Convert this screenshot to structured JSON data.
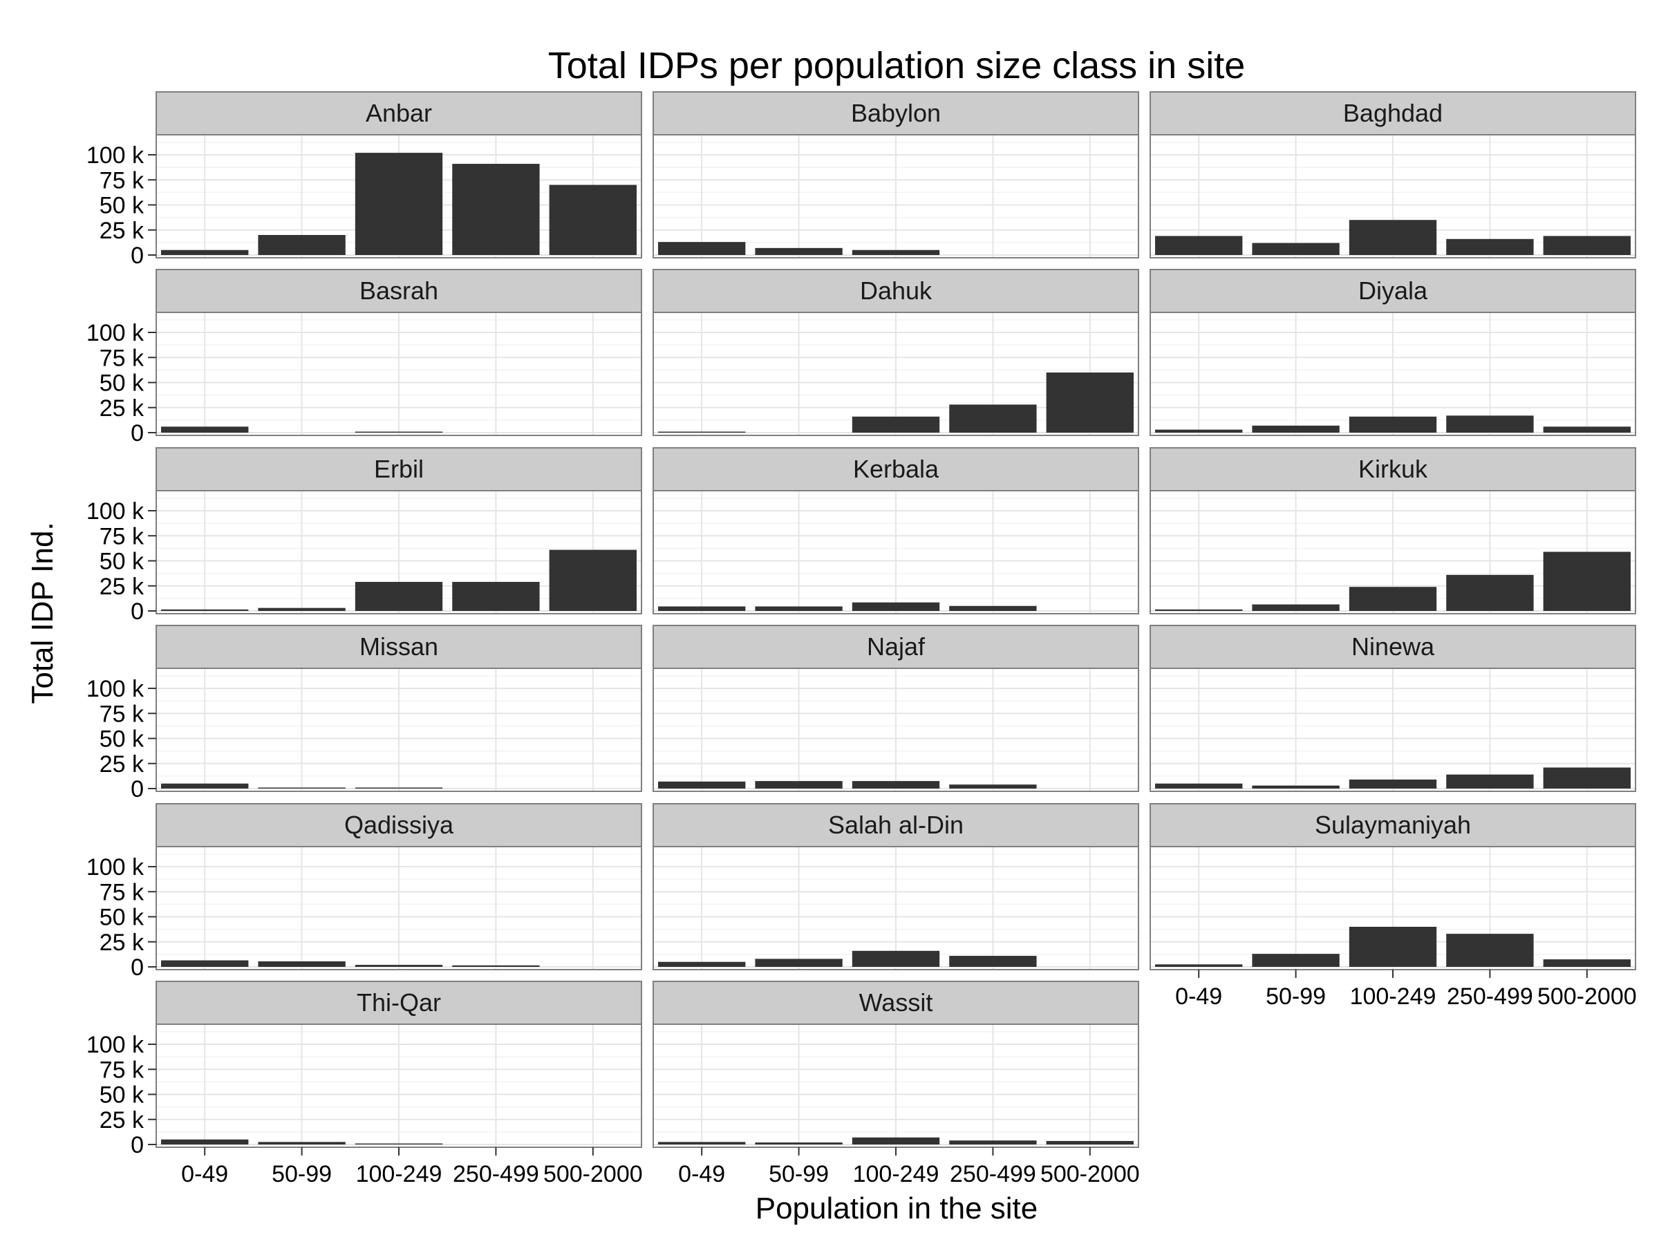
{
  "chart_data": {
    "type": "bar",
    "faceted": true,
    "title": "Total IDPs per population size class in site",
    "xlabel": "Population in the site",
    "ylabel": "Total IDP Ind.",
    "categories": [
      "0-49",
      "50-99",
      "100-249",
      "250-499",
      "500-2000"
    ],
    "ylim": [
      0,
      120000
    ],
    "yticks": [
      0,
      25000,
      50000,
      75000,
      100000
    ],
    "ytick_labels": [
      "0",
      "25 k",
      "50 k",
      "75 k",
      "100 k"
    ],
    "grid": true,
    "bar_color": "#333333",
    "facets": [
      {
        "name": "Anbar",
        "values": [
          5000,
          20000,
          102000,
          91000,
          70000
        ]
      },
      {
        "name": "Babylon",
        "values": [
          13000,
          7000,
          5000,
          0,
          0
        ]
      },
      {
        "name": "Baghdad",
        "values": [
          19000,
          12000,
          35000,
          16000,
          19000
        ]
      },
      {
        "name": "Basrah",
        "values": [
          6000,
          0,
          1000,
          0,
          0
        ]
      },
      {
        "name": "Dahuk",
        "values": [
          1000,
          0,
          16000,
          28000,
          60000
        ]
      },
      {
        "name": "Diyala",
        "values": [
          3000,
          7000,
          16000,
          17000,
          6000
        ]
      },
      {
        "name": "Erbil",
        "values": [
          1500,
          3000,
          29000,
          29000,
          61000
        ]
      },
      {
        "name": "Kerbala",
        "values": [
          4500,
          4500,
          8500,
          5000,
          0
        ]
      },
      {
        "name": "Kirkuk",
        "values": [
          1500,
          6500,
          24000,
          36000,
          59000
        ]
      },
      {
        "name": "Missan",
        "values": [
          5000,
          1000,
          1000,
          0,
          0
        ]
      },
      {
        "name": "Najaf",
        "values": [
          7000,
          7500,
          7500,
          4000,
          0
        ]
      },
      {
        "name": "Ninewa",
        "values": [
          5000,
          3000,
          9000,
          14000,
          21000
        ]
      },
      {
        "name": "Qadissiya",
        "values": [
          6500,
          5500,
          2000,
          1500,
          0
        ]
      },
      {
        "name": "Salah al-Din",
        "values": [
          5000,
          8000,
          16000,
          11000,
          0
        ]
      },
      {
        "name": "Sulaymaniyah",
        "values": [
          2500,
          13000,
          40000,
          33000,
          7500
        ]
      },
      {
        "name": "Thi-Qar",
        "values": [
          5000,
          2500,
          1000,
          0,
          0
        ]
      },
      {
        "name": "Wassit",
        "values": [
          2500,
          2000,
          7000,
          4000,
          3500
        ]
      }
    ]
  }
}
